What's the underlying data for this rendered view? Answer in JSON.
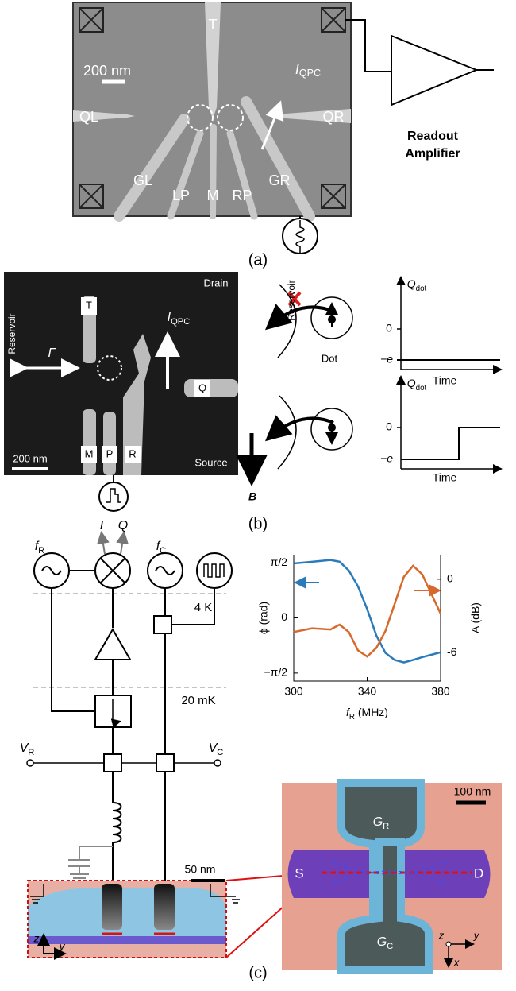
{
  "panel_a": {
    "label": "(a)",
    "gates": [
      "T",
      "QL",
      "QR",
      "GL",
      "LP",
      "M",
      "RP",
      "GR"
    ],
    "scale": "200 nm",
    "current": {
      "main": "I",
      "sub": "QPC"
    },
    "amplifier": [
      "Readout",
      "Amplifier"
    ]
  },
  "panel_b": {
    "label": "(b)",
    "gates": [
      "T",
      "M",
      "P",
      "R",
      "Q"
    ],
    "drain": "Drain",
    "source": "Source",
    "reservoir": "Reservoir",
    "rate": "Γ",
    "current": {
      "main": "I",
      "sub": "QPC"
    },
    "scale": "200 nm",
    "field": "B",
    "schematic": {
      "reservoir": "Reservoir",
      "dot": "Dot",
      "plots": [
        {
          "ylabel": {
            "main": "Q",
            "sub": "dot"
          },
          "ticks": [
            "0",
            "−e"
          ],
          "xlabel": "Time"
        },
        {
          "ylabel": {
            "main": "Q",
            "sub": "dot"
          },
          "ticks": [
            "0",
            "−e"
          ],
          "xlabel": "Time"
        }
      ]
    }
  },
  "panel_c": {
    "label": "(c)",
    "circuit": {
      "sources": [
        {
          "main": "f",
          "sub": "R"
        },
        {
          "main": "f",
          "sub": "C"
        }
      ],
      "outputs": [
        "I",
        "Q"
      ],
      "stages": [
        "4 K",
        "20 mK"
      ],
      "gates": [
        {
          "main": "V",
          "sub": "R"
        },
        {
          "main": "V",
          "sub": "C"
        }
      ],
      "scale": "50 nm",
      "axes": [
        "z",
        "y"
      ]
    },
    "sem": {
      "scale": "100 nm",
      "gates": [
        {
          "main": "G",
          "sub": "R"
        },
        {
          "main": "G",
          "sub": "C"
        }
      ],
      "contacts": [
        "S",
        "D"
      ],
      "axes": [
        "z",
        "y",
        "x"
      ]
    }
  },
  "chart_data": {
    "type": "line",
    "x_label": {
      "main": "f",
      "sub": "R",
      "unit": " (MHz)"
    },
    "y_label": "ϕ (rad)",
    "y2_label": "A (dB)",
    "x": [
      300,
      310,
      320,
      325,
      330,
      335,
      340,
      345,
      350,
      355,
      360,
      365,
      370,
      375,
      380
    ],
    "series": [
      {
        "color": "#2b7bba",
        "values": [
          1.55,
          1.6,
          1.65,
          1.6,
          1.35,
          0.9,
          0.25,
          -0.5,
          -1.0,
          -1.2,
          -1.27,
          -1.2,
          -1.12,
          -1.05,
          -0.98
        ]
      },
      {
        "color": "#d8692c",
        "axis": "y2",
        "values": [
          -4.3,
          -4.0,
          -4.1,
          -3.7,
          -4.3,
          -5.8,
          -6.3,
          -5.6,
          -4.2,
          -2.0,
          0.2,
          1.1,
          0.4,
          -1.2,
          -2.8
        ]
      }
    ],
    "xlim": [
      300,
      380
    ],
    "xticks": [
      300,
      340,
      380
    ],
    "ylim": [
      -1.8,
      1.8
    ],
    "yticks": [
      {
        "value": 1.5708,
        "label": "π/2"
      },
      0,
      {
        "value": -1.5708,
        "label": "−π/2"
      }
    ],
    "y2lim": [
      -8.3,
      2
    ],
    "y2ticks": [
      0,
      -6
    ]
  }
}
